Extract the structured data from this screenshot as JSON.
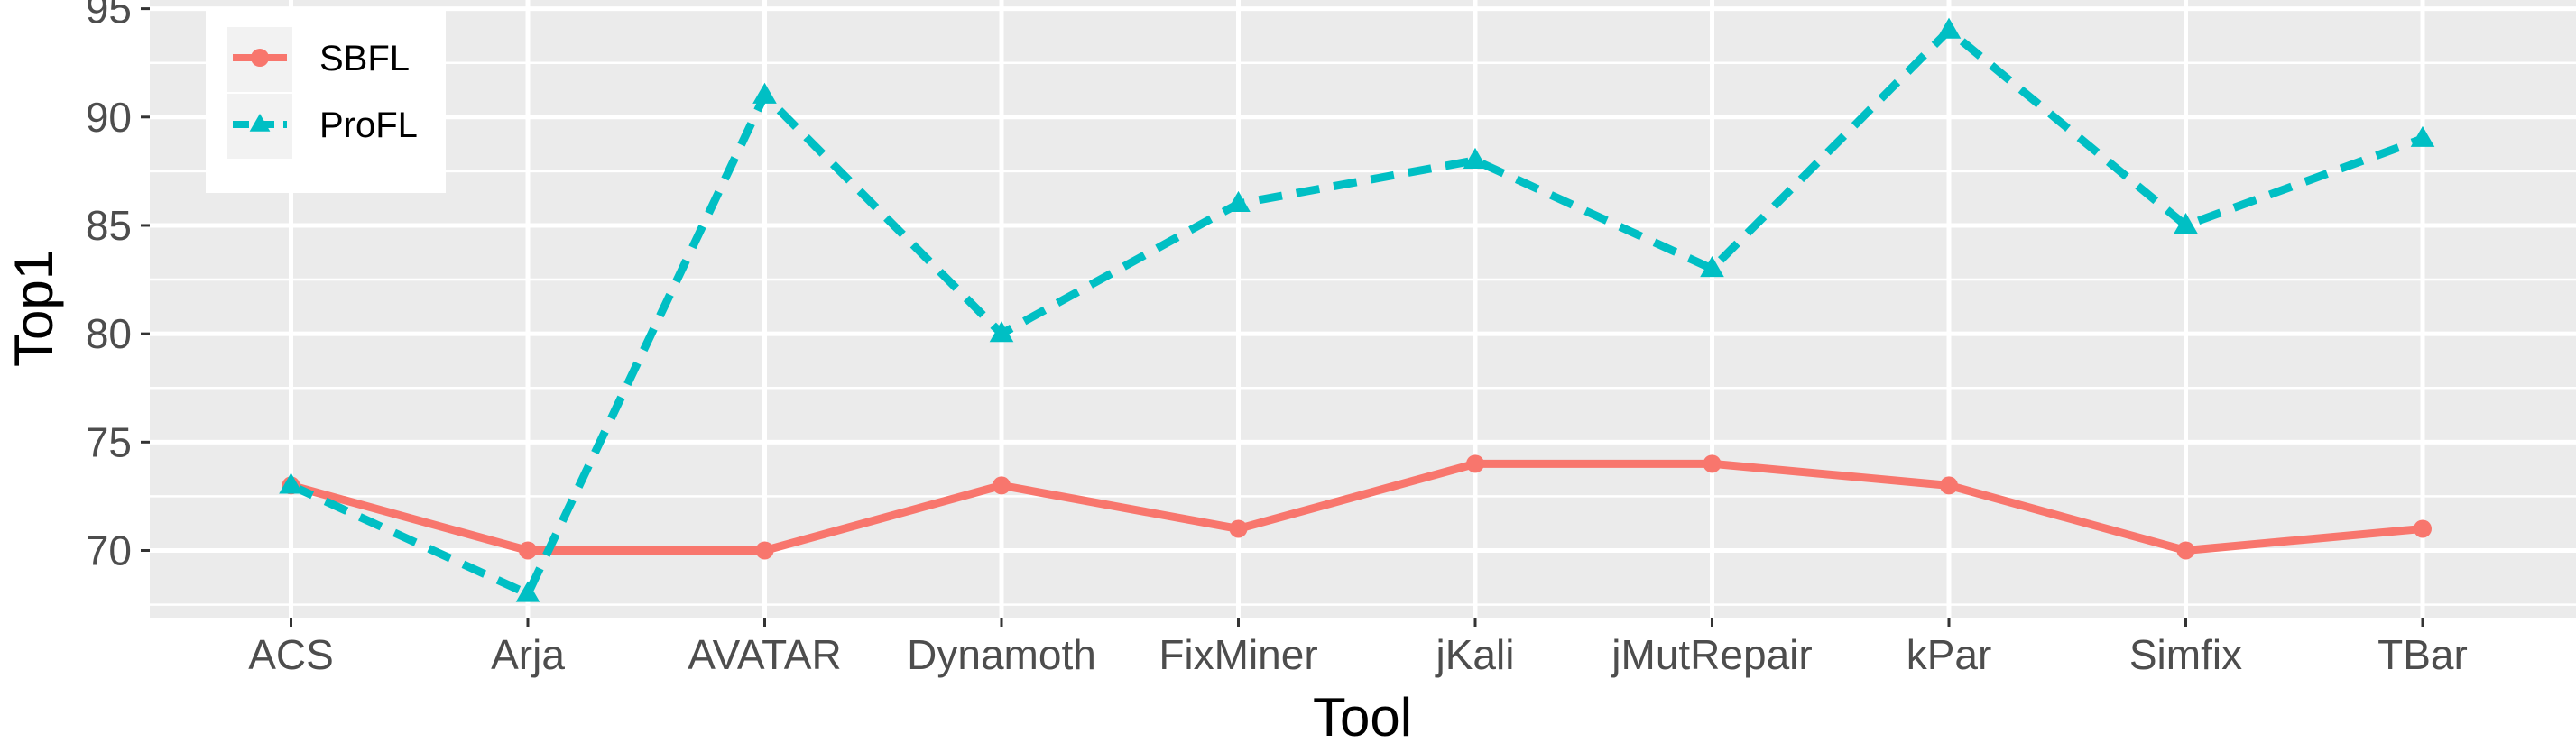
{
  "chart_data": {
    "type": "line",
    "xlabel": "Tool",
    "ylabel": "Top1",
    "categories": [
      "ACS",
      "Arja",
      "AVATAR",
      "Dynamoth",
      "FixMiner",
      "jKali",
      "jMutRepair",
      "kPar",
      "Simfix",
      "TBar"
    ],
    "ylim": [
      66.9,
      95.4
    ],
    "yticks": [
      70,
      75,
      80,
      85,
      90,
      95
    ],
    "grid": true,
    "legend_position": "top-left",
    "series": [
      {
        "name": "SBFL",
        "values": [
          73,
          70,
          70,
          73,
          71,
          74,
          74,
          73,
          70,
          71
        ],
        "color": "#F8766D",
        "line": "solid",
        "marker": "circle"
      },
      {
        "name": "ProFL",
        "values": [
          73,
          68,
          91,
          80,
          86,
          88,
          83,
          94,
          85,
          89
        ],
        "color": "#00BFC4",
        "line": "dashed",
        "marker": "triangle"
      }
    ]
  }
}
